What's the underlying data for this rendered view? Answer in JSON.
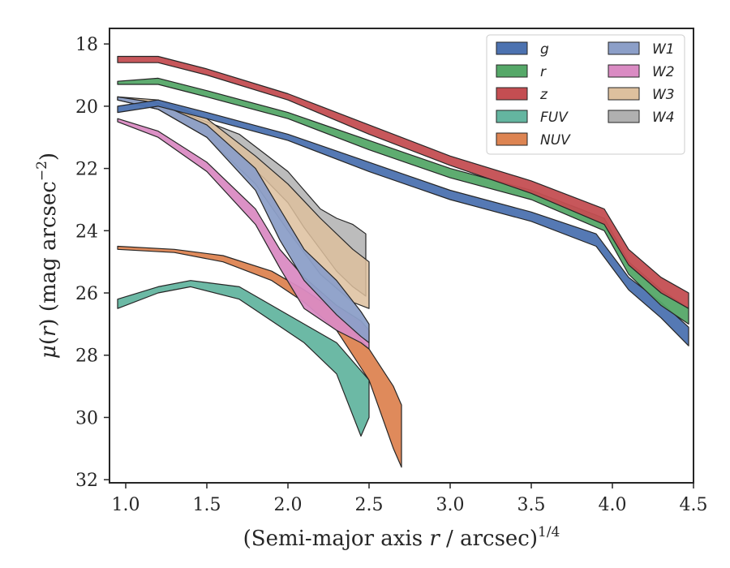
{
  "chart_data": {
    "type": "area",
    "xlabel": "(Semi-major axis r / arcsec)^{1/4}",
    "xlabel_parts": {
      "pre": "(Semi-major axis ",
      "var": "r",
      "post": " / arcsec)",
      "sup": "1/4"
    },
    "ylabel": "μ(r) (mag arcsec^{-2})",
    "ylabel_parts": {
      "mu": "μ",
      "open": "(",
      "var": "r",
      "close": ")",
      "units": " (mag arcsec",
      "sup": "−2",
      "end": ")"
    },
    "xlim": [
      0.9,
      4.5
    ],
    "ylim": [
      32.1,
      17.5
    ],
    "y_inverted": true,
    "x_ticks": [
      1.0,
      1.5,
      2.0,
      2.5,
      3.0,
      3.5,
      4.0,
      4.5
    ],
    "x_tick_labels": [
      "1.0",
      "1.5",
      "2.0",
      "2.5",
      "3.0",
      "3.5",
      "4.0",
      "4.5"
    ],
    "y_ticks": [
      18,
      20,
      22,
      24,
      26,
      28,
      30,
      32
    ],
    "y_tick_labels": [
      "18",
      "20",
      "22",
      "24",
      "26",
      "28",
      "30",
      "32"
    ],
    "grid": false,
    "legend_position": "top-right",
    "legend_columns": 2,
    "series": [
      {
        "name": "g",
        "color": "#4c72b0",
        "upper": [
          [
            0.95,
            20.0
          ],
          [
            1.2,
            19.8
          ],
          [
            1.5,
            20.2
          ],
          [
            2.0,
            20.9
          ],
          [
            2.5,
            21.8
          ],
          [
            3.0,
            22.7
          ],
          [
            3.5,
            23.4
          ],
          [
            3.9,
            24.1
          ],
          [
            4.1,
            25.5
          ],
          [
            4.3,
            26.3
          ],
          [
            4.47,
            27.1
          ]
        ],
        "lower": [
          [
            0.95,
            20.2
          ],
          [
            1.2,
            20.0
          ],
          [
            1.5,
            20.4
          ],
          [
            2.0,
            21.1
          ],
          [
            2.5,
            22.1
          ],
          [
            3.0,
            23.0
          ],
          [
            3.5,
            23.7
          ],
          [
            3.9,
            24.5
          ],
          [
            4.1,
            25.9
          ],
          [
            4.3,
            26.8
          ],
          [
            4.47,
            27.7
          ]
        ]
      },
      {
        "name": "r",
        "color": "#55a868",
        "upper": [
          [
            0.95,
            19.2
          ],
          [
            1.2,
            19.1
          ],
          [
            1.5,
            19.5
          ],
          [
            2.0,
            20.2
          ],
          [
            2.5,
            21.1
          ],
          [
            3.0,
            22.0
          ],
          [
            3.5,
            22.7
          ],
          [
            3.95,
            23.6
          ],
          [
            4.1,
            25.0
          ],
          [
            4.3,
            25.9
          ],
          [
            4.47,
            26.5
          ]
        ],
        "lower": [
          [
            0.95,
            19.3
          ],
          [
            1.2,
            19.3
          ],
          [
            1.5,
            19.7
          ],
          [
            2.0,
            20.4
          ],
          [
            2.5,
            21.4
          ],
          [
            3.0,
            22.3
          ],
          [
            3.5,
            23.0
          ],
          [
            3.95,
            24.0
          ],
          [
            4.1,
            25.4
          ],
          [
            4.3,
            26.4
          ],
          [
            4.47,
            27.0
          ]
        ]
      },
      {
        "name": "z",
        "color": "#c44e52",
        "upper": [
          [
            0.95,
            18.4
          ],
          [
            1.2,
            18.4
          ],
          [
            1.5,
            18.8
          ],
          [
            2.0,
            19.6
          ],
          [
            2.5,
            20.6
          ],
          [
            3.0,
            21.6
          ],
          [
            3.5,
            22.4
          ],
          [
            3.95,
            23.3
          ],
          [
            4.1,
            24.6
          ],
          [
            4.3,
            25.5
          ],
          [
            4.47,
            26.0
          ]
        ],
        "lower": [
          [
            0.95,
            18.6
          ],
          [
            1.2,
            18.6
          ],
          [
            1.5,
            19.0
          ],
          [
            2.0,
            19.8
          ],
          [
            2.5,
            20.9
          ],
          [
            3.0,
            21.9
          ],
          [
            3.5,
            22.8
          ],
          [
            3.95,
            23.8
          ],
          [
            4.1,
            25.1
          ],
          [
            4.3,
            26.0
          ],
          [
            4.47,
            26.5
          ]
        ]
      },
      {
        "name": "FUV",
        "color": "#64b5a0",
        "upper": [
          [
            0.95,
            26.2
          ],
          [
            1.2,
            25.8
          ],
          [
            1.4,
            25.6
          ],
          [
            1.7,
            25.8
          ],
          [
            1.9,
            26.4
          ],
          [
            2.1,
            27.0
          ],
          [
            2.3,
            27.6
          ],
          [
            2.45,
            28.5
          ],
          [
            2.5,
            28.8
          ]
        ],
        "lower": [
          [
            0.95,
            26.5
          ],
          [
            1.2,
            26.0
          ],
          [
            1.4,
            25.8
          ],
          [
            1.7,
            26.2
          ],
          [
            1.9,
            26.9
          ],
          [
            2.1,
            27.6
          ],
          [
            2.3,
            28.6
          ],
          [
            2.45,
            30.6
          ],
          [
            2.5,
            30.0
          ]
        ]
      },
      {
        "name": "NUV",
        "color": "#dd8452",
        "upper": [
          [
            0.95,
            24.5
          ],
          [
            1.3,
            24.6
          ],
          [
            1.6,
            24.8
          ],
          [
            1.9,
            25.3
          ],
          [
            2.1,
            25.9
          ],
          [
            2.3,
            26.6
          ],
          [
            2.5,
            27.8
          ],
          [
            2.65,
            29.0
          ],
          [
            2.7,
            29.6
          ]
        ],
        "lower": [
          [
            0.95,
            24.6
          ],
          [
            1.3,
            24.7
          ],
          [
            1.6,
            25.0
          ],
          [
            1.9,
            25.6
          ],
          [
            2.1,
            26.3
          ],
          [
            2.3,
            27.2
          ],
          [
            2.5,
            28.8
          ],
          [
            2.65,
            31.0
          ],
          [
            2.7,
            31.6
          ]
        ]
      },
      {
        "name": "W1",
        "color": "#8c9fc8",
        "upper": [
          [
            0.95,
            19.7
          ],
          [
            1.2,
            19.9
          ],
          [
            1.5,
            20.6
          ],
          [
            1.8,
            22.0
          ],
          [
            1.95,
            23.3
          ],
          [
            2.1,
            24.6
          ],
          [
            2.3,
            25.6
          ],
          [
            2.45,
            26.6
          ],
          [
            2.5,
            27.0
          ]
        ],
        "lower": [
          [
            0.95,
            19.8
          ],
          [
            1.2,
            20.1
          ],
          [
            1.5,
            21.0
          ],
          [
            1.8,
            22.7
          ],
          [
            1.95,
            24.3
          ],
          [
            2.1,
            25.6
          ],
          [
            2.3,
            26.7
          ],
          [
            2.45,
            27.4
          ],
          [
            2.5,
            27.6
          ]
        ]
      },
      {
        "name": "W2",
        "color": "#da8bc3",
        "upper": [
          [
            0.95,
            20.4
          ],
          [
            1.2,
            20.8
          ],
          [
            1.5,
            21.8
          ],
          [
            1.8,
            23.3
          ],
          [
            1.95,
            24.6
          ],
          [
            2.1,
            25.5
          ],
          [
            2.3,
            26.4
          ],
          [
            2.45,
            26.9
          ],
          [
            2.5,
            27.2
          ]
        ],
        "lower": [
          [
            0.95,
            20.5
          ],
          [
            1.2,
            21.0
          ],
          [
            1.5,
            22.1
          ],
          [
            1.8,
            23.8
          ],
          [
            1.95,
            25.2
          ],
          [
            2.1,
            26.5
          ],
          [
            2.3,
            27.2
          ],
          [
            2.45,
            27.6
          ],
          [
            2.5,
            27.8
          ]
        ]
      },
      {
        "name": "W3",
        "color": "#ddc09e",
        "upper": [
          [
            0.95,
            19.7
          ],
          [
            1.2,
            19.8
          ],
          [
            1.5,
            20.4
          ],
          [
            1.8,
            21.6
          ],
          [
            2.0,
            22.5
          ],
          [
            2.2,
            23.6
          ],
          [
            2.4,
            24.6
          ],
          [
            2.5,
            25.0
          ]
        ],
        "lower": [
          [
            0.95,
            19.8
          ],
          [
            1.2,
            20.1
          ],
          [
            1.5,
            21.0
          ],
          [
            1.8,
            22.5
          ],
          [
            2.0,
            24.0
          ],
          [
            2.2,
            25.4
          ],
          [
            2.4,
            26.3
          ],
          [
            2.5,
            26.5
          ]
        ]
      },
      {
        "name": "W4",
        "color": "#b0b0b0",
        "upper": [
          [
            0.95,
            19.7
          ],
          [
            1.2,
            19.9
          ],
          [
            1.5,
            20.5
          ],
          [
            1.7,
            20.9
          ],
          [
            1.85,
            21.5
          ],
          [
            2.0,
            22.1
          ],
          [
            2.1,
            22.7
          ],
          [
            2.2,
            23.3
          ],
          [
            2.3,
            23.6
          ],
          [
            2.4,
            23.8
          ],
          [
            2.48,
            24.1
          ]
        ],
        "lower": [
          [
            0.95,
            19.8
          ],
          [
            1.2,
            20.1
          ],
          [
            1.5,
            20.9
          ],
          [
            1.7,
            21.6
          ],
          [
            1.85,
            22.3
          ],
          [
            2.0,
            23.1
          ],
          [
            2.1,
            23.9
          ],
          [
            2.2,
            24.6
          ],
          [
            2.3,
            25.3
          ],
          [
            2.4,
            25.8
          ],
          [
            2.48,
            26.1
          ]
        ]
      }
    ]
  }
}
